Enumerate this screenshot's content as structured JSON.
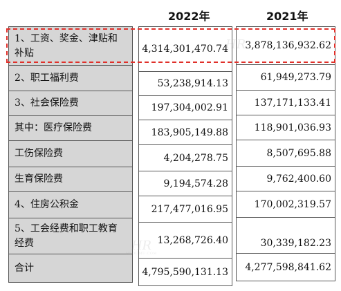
{
  "header": {
    "year_2022": "2022年",
    "year_2021": "2021年"
  },
  "rows": [
    {
      "label": "1、工资、奖金、津贴和补贴",
      "v2022": "4,314,301,470.74",
      "v2021": "3,878,136,932.62"
    },
    {
      "label": "2、职工福利费",
      "v2022": "53,238,914.13",
      "v2021": "61,949,273.79"
    },
    {
      "label": "3、社会保险费",
      "v2022": "197,304,002.91",
      "v2021": "137,171,133.41"
    },
    {
      "label": "其中：医疗保险费",
      "v2022": "183,905,149.88",
      "v2021": "118,901,036.93"
    },
    {
      "label": "工伤保险费",
      "v2022": "4,204,278.75",
      "v2021": "8,507,695.88"
    },
    {
      "label": "生育保险费",
      "v2022": "9,194,574.28",
      "v2021": "9,762,400.60"
    },
    {
      "label": "4、住房公积金",
      "v2022": "217,477,016.95",
      "v2021": "170,002,319.57"
    },
    {
      "label": "5、工会经费和职工教育经费",
      "v2022": "13,268,726.40",
      "v2021": "30,339,182.23"
    },
    {
      "label": "合计",
      "v2022": "4,795,590,131.13",
      "v2021": "4,277,598,841.62"
    }
  ],
  "watermark": {
    "mark": "HR",
    "sub": "HROUMU.COM"
  },
  "colors": {
    "label_bg": "#d6d6d6",
    "highlight": "#e0302a",
    "border": "#555555"
  }
}
